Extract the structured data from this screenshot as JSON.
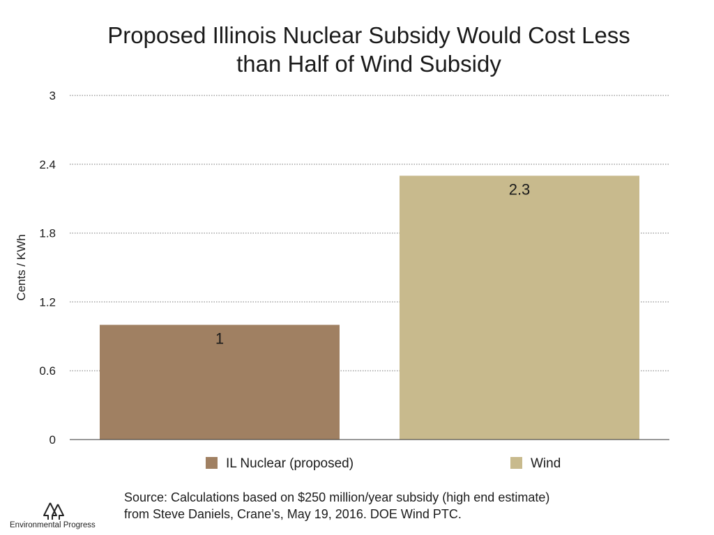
{
  "chart_data": {
    "type": "bar",
    "title_lines": [
      "Proposed Illinois Nuclear Subsidy Would Cost Less",
      "than Half of Wind Subsidy"
    ],
    "ylabel": "Cents / KWh",
    "xlabel": "",
    "ylim": [
      0,
      3
    ],
    "yticks": [
      {
        "value": 0,
        "label": "0"
      },
      {
        "value": 0.6,
        "label": "0.6"
      },
      {
        "value": 1.2,
        "label": "1.2"
      },
      {
        "value": 1.8,
        "label": "1.8"
      },
      {
        "value": 2.4,
        "label": "2.4"
      },
      {
        "value": 3,
        "label": "3"
      }
    ],
    "grid": "horizontal-dotted",
    "legend_position": "bottom",
    "series": [
      {
        "name": "IL Nuclear (proposed)",
        "value": 1,
        "label": "1",
        "color": "#a08062"
      },
      {
        "name": "Wind",
        "value": 2.3,
        "label": "2.3",
        "color": "#c8ba8d"
      }
    ]
  },
  "source_lines": [
    "Source: Calculations based on $250 million/year subsidy (high end estimate)",
    "from Steve Daniels, Crane’s, May 19, 2016. DOE Wind PTC."
  ],
  "logo": {
    "text": "Environmental Progress",
    "icon": "trees-icon"
  }
}
